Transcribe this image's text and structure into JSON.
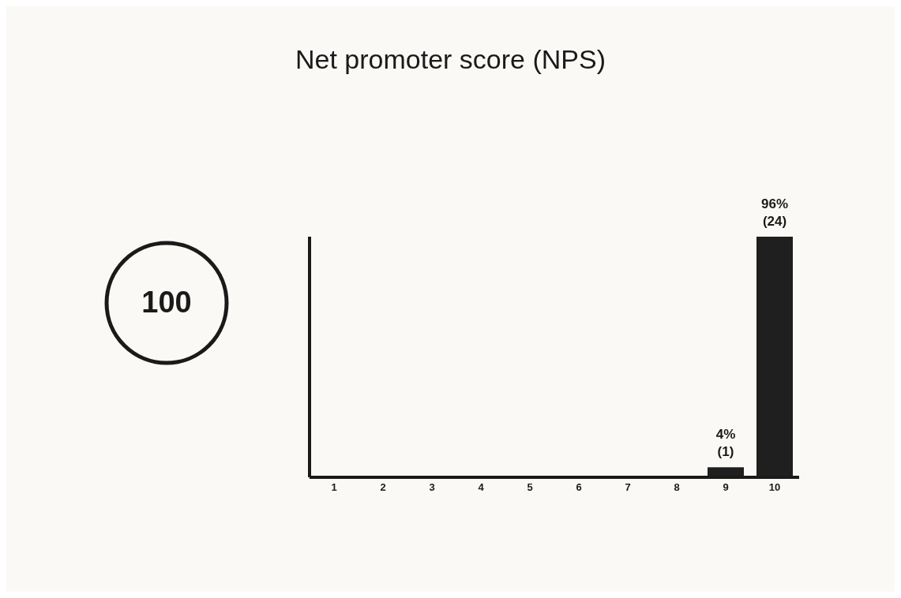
{
  "chart_data": {
    "type": "bar",
    "title": "Net promoter score (NPS)",
    "categories": [
      "1",
      "2",
      "3",
      "4",
      "5",
      "6",
      "7",
      "8",
      "9",
      "10"
    ],
    "values": [
      null,
      null,
      null,
      null,
      null,
      null,
      null,
      null,
      4,
      96
    ],
    "color": "#1f1f1f",
    "value_labels": [
      null,
      null,
      null,
      null,
      null,
      null,
      null,
      null,
      "4%\n(1)",
      "96%\n(24)"
    ],
    "annotations": [
      "100"
    ],
    "tick_labels": "x"
  }
}
